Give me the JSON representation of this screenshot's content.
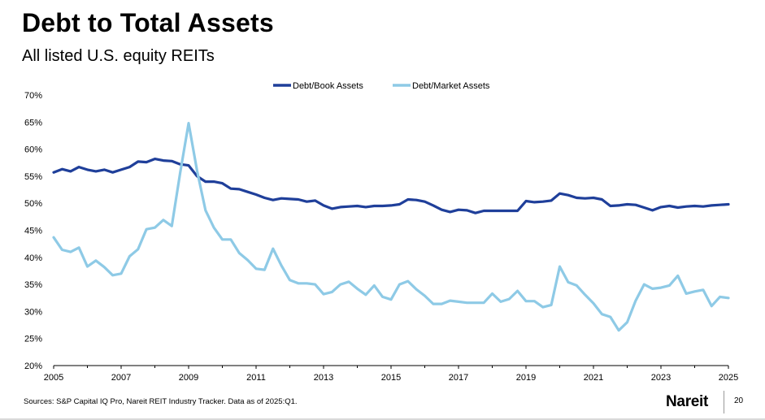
{
  "header": {
    "title": "Debt to Total Assets",
    "subtitle": "All listed U.S. equity REITs"
  },
  "footer": {
    "source": "Sources: S&P Capital IQ Pro, Nareit REIT Industry Tracker. Data as of 2025:Q1.",
    "logo": "Nareit",
    "page_number": "20"
  },
  "chart_data": {
    "type": "line",
    "title": "",
    "xlabel": "",
    "ylabel": "",
    "xlim": [
      2005,
      2025
    ],
    "ylim": [
      0.2,
      0.7
    ],
    "y_ticks": [
      "20%",
      "25%",
      "30%",
      "35%",
      "40%",
      "45%",
      "50%",
      "55%",
      "60%",
      "65%",
      "70%"
    ],
    "x_ticks": [
      "2005",
      "2007",
      "2009",
      "2011",
      "2013",
      "2015",
      "2017",
      "2019",
      "2021",
      "2023",
      "2025"
    ],
    "grid": false,
    "legend_position": "top-center",
    "x": [
      2005.0,
      2005.25,
      2005.5,
      2005.75,
      2006.0,
      2006.25,
      2006.5,
      2006.75,
      2007.0,
      2007.25,
      2007.5,
      2007.75,
      2008.0,
      2008.25,
      2008.5,
      2008.75,
      2009.0,
      2009.25,
      2009.5,
      2009.75,
      2010.0,
      2010.25,
      2010.5,
      2010.75,
      2011.0,
      2011.25,
      2011.5,
      2011.75,
      2012.0,
      2012.25,
      2012.5,
      2012.75,
      2013.0,
      2013.25,
      2013.5,
      2013.75,
      2014.0,
      2014.25,
      2014.5,
      2014.75,
      2015.0,
      2015.25,
      2015.5,
      2015.75,
      2016.0,
      2016.25,
      2016.5,
      2016.75,
      2017.0,
      2017.25,
      2017.5,
      2017.75,
      2018.0,
      2018.25,
      2018.5,
      2018.75,
      2019.0,
      2019.25,
      2019.5,
      2019.75,
      2020.0,
      2020.25,
      2020.5,
      2020.75,
      2021.0,
      2021.25,
      2021.5,
      2021.75,
      2022.0,
      2022.25,
      2022.5,
      2022.75,
      2023.0,
      2023.25,
      2023.5,
      2023.75,
      2024.0,
      2024.25,
      2024.5,
      2024.75,
      2025.0
    ],
    "series": [
      {
        "name": "Debt/Book Assets",
        "color": "#1f3f9a",
        "values": [
          0.557,
          0.563,
          0.559,
          0.567,
          0.562,
          0.559,
          0.562,
          0.557,
          0.562,
          0.567,
          0.577,
          0.576,
          0.582,
          0.579,
          0.578,
          0.572,
          0.57,
          0.55,
          0.54,
          0.54,
          0.537,
          0.527,
          0.526,
          0.521,
          0.516,
          0.51,
          0.506,
          0.509,
          0.508,
          0.507,
          0.503,
          0.505,
          0.496,
          0.49,
          0.493,
          0.494,
          0.495,
          0.493,
          0.495,
          0.495,
          0.496,
          0.498,
          0.507,
          0.506,
          0.503,
          0.496,
          0.488,
          0.484,
          0.488,
          0.487,
          0.482,
          0.486,
          0.486,
          0.486,
          0.486,
          0.486,
          0.504,
          0.502,
          0.503,
          0.505,
          0.518,
          0.515,
          0.51,
          0.509,
          0.51,
          0.507,
          0.495,
          0.496,
          0.498,
          0.497,
          0.492,
          0.487,
          0.493,
          0.495,
          0.492,
          0.494,
          0.495,
          0.494,
          0.496,
          0.497,
          0.498
        ]
      },
      {
        "name": "Debt/Market Assets",
        "color": "#8ecae6",
        "values": [
          0.437,
          0.414,
          0.41,
          0.418,
          0.383,
          0.394,
          0.382,
          0.367,
          0.37,
          0.402,
          0.415,
          0.452,
          0.455,
          0.469,
          0.458,
          0.556,
          0.648,
          0.56,
          0.487,
          0.455,
          0.433,
          0.433,
          0.408,
          0.395,
          0.379,
          0.377,
          0.416,
          0.385,
          0.358,
          0.352,
          0.352,
          0.35,
          0.332,
          0.336,
          0.35,
          0.355,
          0.342,
          0.331,
          0.348,
          0.327,
          0.322,
          0.35,
          0.356,
          0.341,
          0.329,
          0.314,
          0.314,
          0.32,
          0.318,
          0.316,
          0.316,
          0.316,
          0.333,
          0.318,
          0.323,
          0.338,
          0.319,
          0.319,
          0.308,
          0.312,
          0.383,
          0.354,
          0.348,
          0.331,
          0.315,
          0.295,
          0.29,
          0.265,
          0.28,
          0.32,
          0.35,
          0.342,
          0.344,
          0.348,
          0.366,
          0.333,
          0.337,
          0.34,
          0.31,
          0.327,
          0.325
        ]
      }
    ]
  }
}
